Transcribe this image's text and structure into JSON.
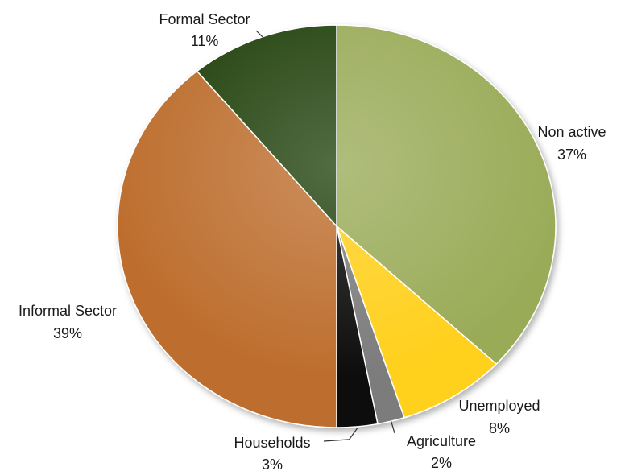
{
  "chart_data": {
    "type": "pie",
    "start_angle_deg": 0,
    "direction": "clockwise",
    "slices": [
      {
        "name": "Non active",
        "label": "Non active",
        "pct_label": "37%",
        "value": 37,
        "color": "#9aab58"
      },
      {
        "name": "Unemployed",
        "label": "Unemployed",
        "pct_label": "8%",
        "value": 8,
        "color": "#ffd01f"
      },
      {
        "name": "Agriculture",
        "label": "Agriculture",
        "pct_label": "2%",
        "value": 2,
        "color": "#7c7c7c"
      },
      {
        "name": "Households",
        "label": "Households",
        "pct_label": "3%",
        "value": 3,
        "color": "#0b0b0b"
      },
      {
        "name": "Informal Sector",
        "label": "Informal Sector",
        "pct_label": "39%",
        "value": 39,
        "color": "#bd6e2e"
      },
      {
        "name": "Formal Sector",
        "label": "Formal Sector",
        "pct_label": "11%",
        "value": 11,
        "color": "#20420b"
      }
    ]
  }
}
